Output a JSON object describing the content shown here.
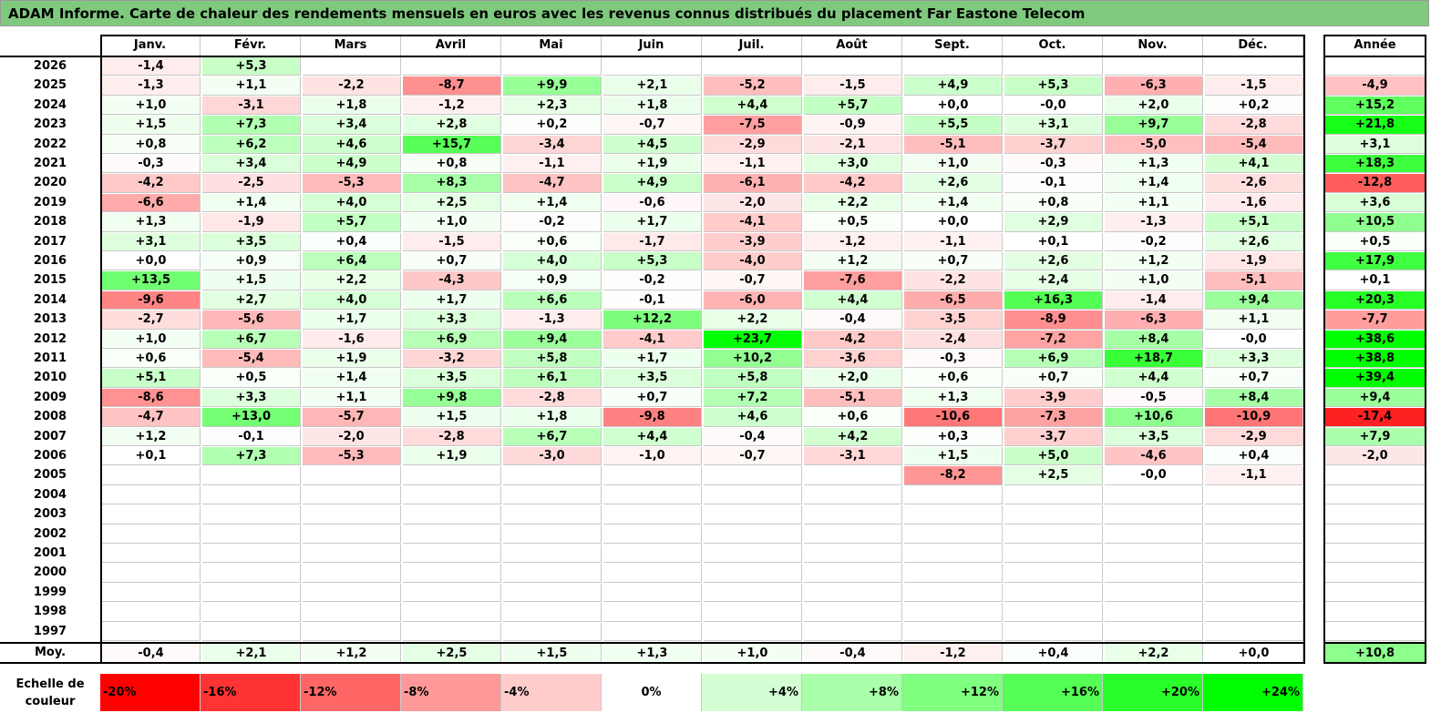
{
  "title": "ADAM Informe. Carte de chaleur des rendements mensuels en euros avec les revenus connus distribués du placement Far Eastone Telecom",
  "chart_data": {
    "type": "heatmap",
    "columns": [
      "Janv.",
      "Févr.",
      "Mars",
      "Avril",
      "Mai",
      "Juin",
      "Juil.",
      "Août",
      "Sept.",
      "Oct.",
      "Nov.",
      "Déc."
    ],
    "annual_header": "Année",
    "rows": [
      {
        "year": "2026",
        "values": [
          "-1,4",
          "+5,3",
          null,
          null,
          null,
          null,
          null,
          null,
          null,
          null,
          null,
          null
        ],
        "annual": null
      },
      {
        "year": "2025",
        "values": [
          "-1,3",
          "+1,1",
          "-2,2",
          "-8,7",
          "+9,9",
          "+2,1",
          "-5,2",
          "-1,5",
          "+4,9",
          "+5,3",
          "-6,3",
          "-1,5"
        ],
        "annual": "-4,9"
      },
      {
        "year": "2024",
        "values": [
          "+1,0",
          "-3,1",
          "+1,8",
          "-1,2",
          "+2,3",
          "+1,8",
          "+4,4",
          "+5,7",
          "+0,0",
          "-0,0",
          "+2,0",
          "+0,2"
        ],
        "annual": "+15,2"
      },
      {
        "year": "2023",
        "values": [
          "+1,5",
          "+7,3",
          "+3,4",
          "+2,8",
          "+0,2",
          "-0,7",
          "-7,5",
          "-0,9",
          "+5,5",
          "+3,1",
          "+9,7",
          "-2,8"
        ],
        "annual": "+21,8"
      },
      {
        "year": "2022",
        "values": [
          "+0,8",
          "+6,2",
          "+4,6",
          "+15,7",
          "-3,4",
          "+4,5",
          "-2,9",
          "-2,1",
          "-5,1",
          "-3,7",
          "-5,0",
          "-5,4"
        ],
        "annual": "+3,1"
      },
      {
        "year": "2021",
        "values": [
          "-0,3",
          "+3,4",
          "+4,9",
          "+0,8",
          "-1,1",
          "+1,9",
          "-1,1",
          "+3,0",
          "+1,0",
          "-0,3",
          "+1,3",
          "+4,1"
        ],
        "annual": "+18,3"
      },
      {
        "year": "2020",
        "values": [
          "-4,2",
          "-2,5",
          "-5,3",
          "+8,3",
          "-4,7",
          "+4,9",
          "-6,1",
          "-4,2",
          "+2,6",
          "-0,1",
          "+1,4",
          "-2,6"
        ],
        "annual": "-12,8"
      },
      {
        "year": "2019",
        "values": [
          "-6,6",
          "+1,4",
          "+4,0",
          "+2,5",
          "+1,4",
          "-0,6",
          "-2,0",
          "+2,2",
          "+1,4",
          "+0,8",
          "+1,1",
          "-1,6"
        ],
        "annual": "+3,6"
      },
      {
        "year": "2018",
        "values": [
          "+1,3",
          "-1,9",
          "+5,7",
          "+1,0",
          "-0,2",
          "+1,7",
          "-4,1",
          "+0,5",
          "+0,0",
          "+2,9",
          "-1,3",
          "+5,1"
        ],
        "annual": "+10,5"
      },
      {
        "year": "2017",
        "values": [
          "+3,1",
          "+3,5",
          "+0,4",
          "-1,5",
          "+0,6",
          "-1,7",
          "-3,9",
          "-1,2",
          "-1,1",
          "+0,1",
          "-0,2",
          "+2,6"
        ],
        "annual": "+0,5"
      },
      {
        "year": "2016",
        "values": [
          "+0,0",
          "+0,9",
          "+6,4",
          "+0,7",
          "+4,0",
          "+5,3",
          "-4,0",
          "+1,2",
          "+0,7",
          "+2,6",
          "+1,2",
          "-1,9"
        ],
        "annual": "+17,9"
      },
      {
        "year": "2015",
        "values": [
          "+13,5",
          "+1,5",
          "+2,2",
          "-4,3",
          "+0,9",
          "-0,2",
          "-0,7",
          "-7,6",
          "-2,2",
          "+2,4",
          "+1,0",
          "-5,1"
        ],
        "annual": "+0,1"
      },
      {
        "year": "2014",
        "values": [
          "-9,6",
          "+2,7",
          "+4,0",
          "+1,7",
          "+6,6",
          "-0,1",
          "-6,0",
          "+4,4",
          "-6,5",
          "+16,3",
          "-1,4",
          "+9,4"
        ],
        "annual": "+20,3"
      },
      {
        "year": "2013",
        "values": [
          "-2,7",
          "-5,6",
          "+1,7",
          "+3,3",
          "-1,3",
          "+12,2",
          "+2,2",
          "-0,4",
          "-3,5",
          "-8,9",
          "-6,3",
          "+1,1"
        ],
        "annual": "-7,7"
      },
      {
        "year": "2012",
        "values": [
          "+1,0",
          "+6,7",
          "-1,6",
          "+6,9",
          "+9,4",
          "-4,1",
          "+23,7",
          "-4,2",
          "-2,4",
          "-7,2",
          "+8,4",
          "-0,0"
        ],
        "annual": "+38,6"
      },
      {
        "year": "2011",
        "values": [
          "+0,6",
          "-5,4",
          "+1,9",
          "-3,2",
          "+5,8",
          "+1,7",
          "+10,2",
          "-3,6",
          "-0,3",
          "+6,9",
          "+18,7",
          "+3,3"
        ],
        "annual": "+38,8"
      },
      {
        "year": "2010",
        "values": [
          "+5,1",
          "+0,5",
          "+1,4",
          "+3,5",
          "+6,1",
          "+3,5",
          "+5,8",
          "+2,0",
          "+0,6",
          "+0,7",
          "+4,4",
          "+0,7"
        ],
        "annual": "+39,4"
      },
      {
        "year": "2009",
        "values": [
          "-8,6",
          "+3,3",
          "+1,1",
          "+9,8",
          "-2,8",
          "+0,7",
          "+7,2",
          "-5,1",
          "+1,3",
          "-3,9",
          "-0,5",
          "+8,4"
        ],
        "annual": "+9,4"
      },
      {
        "year": "2008",
        "values": [
          "-4,7",
          "+13,0",
          "-5,7",
          "+1,5",
          "+1,8",
          "-9,8",
          "+4,6",
          "+0,6",
          "-10,6",
          "-7,3",
          "+10,6",
          "-10,9"
        ],
        "annual": "-17,4"
      },
      {
        "year": "2007",
        "values": [
          "+1,2",
          "-0,1",
          "-2,0",
          "-2,8",
          "+6,7",
          "+4,4",
          "-0,4",
          "+4,2",
          "+0,3",
          "-3,7",
          "+3,5",
          "-2,9"
        ],
        "annual": "+7,9"
      },
      {
        "year": "2006",
        "values": [
          "+0,1",
          "+7,3",
          "-5,3",
          "+1,9",
          "-3,0",
          "-1,0",
          "-0,7",
          "-3,1",
          "+1,5",
          "+5,0",
          "-4,6",
          "+0,4"
        ],
        "annual": "-2,0"
      },
      {
        "year": "2005",
        "values": [
          null,
          null,
          null,
          null,
          null,
          null,
          null,
          null,
          "-8,2",
          "+2,5",
          "-0,0",
          "-1,1"
        ],
        "annual": null
      },
      {
        "year": "2004",
        "values": [
          null,
          null,
          null,
          null,
          null,
          null,
          null,
          null,
          null,
          null,
          null,
          null
        ],
        "annual": null
      },
      {
        "year": "2003",
        "values": [
          null,
          null,
          null,
          null,
          null,
          null,
          null,
          null,
          null,
          null,
          null,
          null
        ],
        "annual": null
      },
      {
        "year": "2002",
        "values": [
          null,
          null,
          null,
          null,
          null,
          null,
          null,
          null,
          null,
          null,
          null,
          null
        ],
        "annual": null
      },
      {
        "year": "2001",
        "values": [
          null,
          null,
          null,
          null,
          null,
          null,
          null,
          null,
          null,
          null,
          null,
          null
        ],
        "annual": null
      },
      {
        "year": "2000",
        "values": [
          null,
          null,
          null,
          null,
          null,
          null,
          null,
          null,
          null,
          null,
          null,
          null
        ],
        "annual": null
      },
      {
        "year": "1999",
        "values": [
          null,
          null,
          null,
          null,
          null,
          null,
          null,
          null,
          null,
          null,
          null,
          null
        ],
        "annual": null
      },
      {
        "year": "1998",
        "values": [
          null,
          null,
          null,
          null,
          null,
          null,
          null,
          null,
          null,
          null,
          null,
          null
        ],
        "annual": null
      },
      {
        "year": "1997",
        "values": [
          null,
          null,
          null,
          null,
          null,
          null,
          null,
          null,
          null,
          null,
          null,
          null
        ],
        "annual": null
      }
    ],
    "average": {
      "label": "Moy.",
      "values": [
        "-0,4",
        "+2,1",
        "+1,2",
        "+2,5",
        "+1,5",
        "+1,3",
        "+1,0",
        "-0,4",
        "-1,2",
        "+0,4",
        "+2,2",
        "+0,0"
      ],
      "annual": "+10,8"
    },
    "legend": {
      "label": "Echelle de couleur",
      "stops": [
        {
          "label": "-20%",
          "color": "#ff0000"
        },
        {
          "label": "-16%",
          "color": "#ff3333"
        },
        {
          "label": "-12%",
          "color": "#ff6666"
        },
        {
          "label": "-8%",
          "color": "#ff9999"
        },
        {
          "label": "-4%",
          "color": "#ffcccc"
        },
        {
          "label": "0%",
          "color": "#ffffff"
        },
        {
          "label": "+4%",
          "color": "#d4ffd4"
        },
        {
          "label": "+8%",
          "color": "#aaffaa"
        },
        {
          "label": "+12%",
          "color": "#80ff80"
        },
        {
          "label": "+16%",
          "color": "#55ff55"
        },
        {
          "label": "+20%",
          "color": "#2bff2b"
        },
        {
          "label": "+24%",
          "color": "#00ff00"
        }
      ]
    },
    "color_scale": {
      "min": -20,
      "max": 24,
      "negative_color": "#ff0000",
      "positive_color": "#00ff00",
      "neutral_color": "#ffffff"
    }
  }
}
